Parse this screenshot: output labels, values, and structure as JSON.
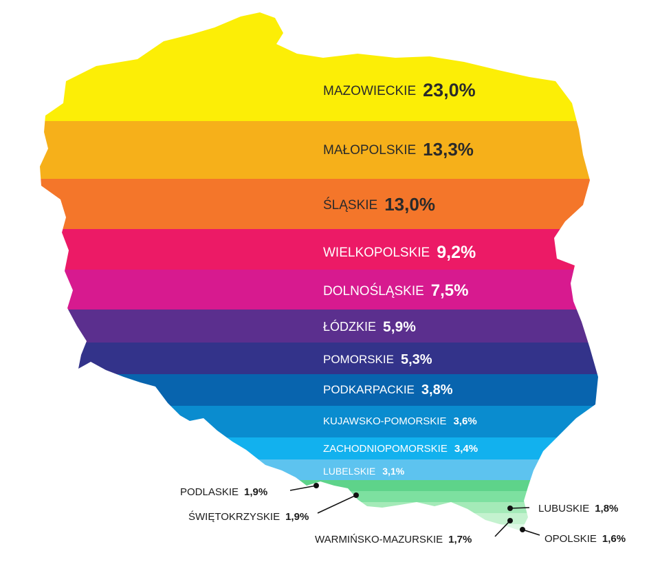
{
  "chart_data": {
    "type": "bar",
    "title": "",
    "xlabel": "",
    "ylabel": "",
    "legend": "none",
    "categories": [
      "MAZOWIECKIE",
      "MAŁOPOLSKIE",
      "ŚLĄSKIE",
      "WIELKOPOLSKIE",
      "DOLNOŚLĄSKIE",
      "ŁÓDZKIE",
      "POMORSKIE",
      "PODKARPACKIE",
      "KUJAWSKO-POMORSKIE",
      "ZACHODNIOPOMORSKIE",
      "LUBELSKIE",
      "PODLASKIE",
      "ŚWIĘTOKRZYSKIE",
      "WARMIŃSKO-MAZURSKIE",
      "LUBUSKIE",
      "OPOLSKIE"
    ],
    "values": [
      23.0,
      13.3,
      13.0,
      9.2,
      7.5,
      5.9,
      5.3,
      3.8,
      3.6,
      3.4,
      3.1,
      1.9,
      1.9,
      1.7,
      1.8,
      1.6
    ],
    "value_labels": [
      "23,0%",
      "13,3%",
      "13,0%",
      "9,2%",
      "7,5%",
      "5,9%",
      "5,3%",
      "3,8%",
      "3,6%",
      "3,4%",
      "3,1%",
      "1,9%",
      "1,9%",
      "1,7%",
      "1,8%",
      "1,6%"
    ],
    "colors": [
      "#FCEE06",
      "#F6B01A",
      "#F4762A",
      "#EC1A66",
      "#D71A8F",
      "#5B2F8E",
      "#33338A",
      "#0864AE",
      "#0A8CCF",
      "#12B1EE",
      "#5DC3EF",
      "#5ED38A",
      "#7DE0A0",
      "#A4EAB8",
      "#C4F2CF",
      "#DDF8E4"
    ]
  }
}
